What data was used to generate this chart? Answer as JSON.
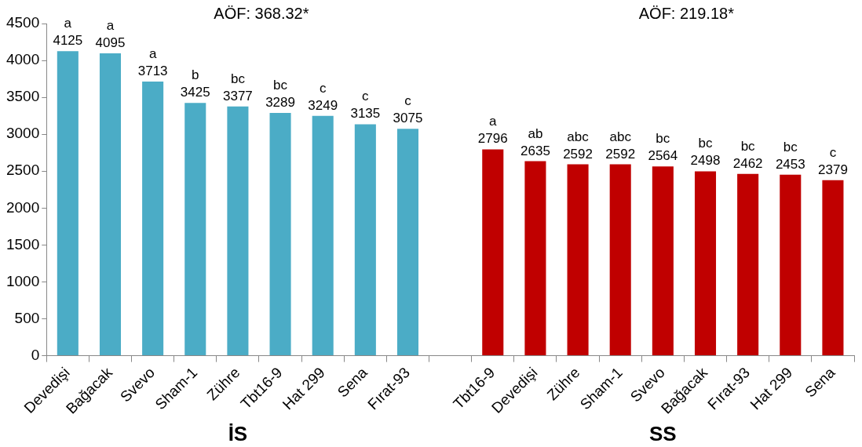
{
  "chart_data": {
    "type": "bar",
    "categories": [
      "Devedişi",
      "Bağacak",
      "Svevo",
      "Sham-1",
      "Zühre",
      "Tbt16-9",
      "Hat 299",
      "Sena",
      "Fırat-93",
      null,
      "Tbt16-9",
      "Devedişi",
      "Zühre",
      "Sham-1",
      "Svevo",
      "Bağacak",
      "Fırat-93",
      "Hat 299",
      "Sena"
    ],
    "values": [
      4125,
      4095,
      3713,
      3425,
      3377,
      3289,
      3249,
      3135,
      3075,
      null,
      2796,
      2635,
      2592,
      2592,
      2564,
      2498,
      2462,
      2453,
      2379
    ],
    "colors": [
      "#4bacc6",
      "#4bacc6",
      "#4bacc6",
      "#4bacc6",
      "#4bacc6",
      "#4bacc6",
      "#4bacc6",
      "#4bacc6",
      "#4bacc6",
      null,
      "#c00000",
      "#c00000",
      "#c00000",
      "#c00000",
      "#c00000",
      "#c00000",
      "#c00000",
      "#c00000",
      "#c00000"
    ],
    "value_labels": [
      "a\n4125",
      "a\n4095",
      "a\n3713",
      "b\n3425",
      "bc\n3377",
      "bc\n3289",
      "c\n3249",
      "c\n3135",
      "c\n3075",
      null,
      "a\n2796",
      "ab\n2635",
      "abc\n2592",
      "abc\n2592",
      "bc\n2564",
      "bc\n2498",
      "bc\n2462",
      "bc\n2453",
      "c\n2379"
    ],
    "ylim": [
      0,
      4500
    ],
    "yticks": [
      0,
      500,
      1000,
      1500,
      2000,
      2500,
      3000,
      3500,
      4000,
      4500
    ],
    "grid": false,
    "legend": false,
    "annotations": [
      "AÖF: 368.32*",
      "AÖF: 219.18*",
      "İS",
      "SS"
    ]
  }
}
